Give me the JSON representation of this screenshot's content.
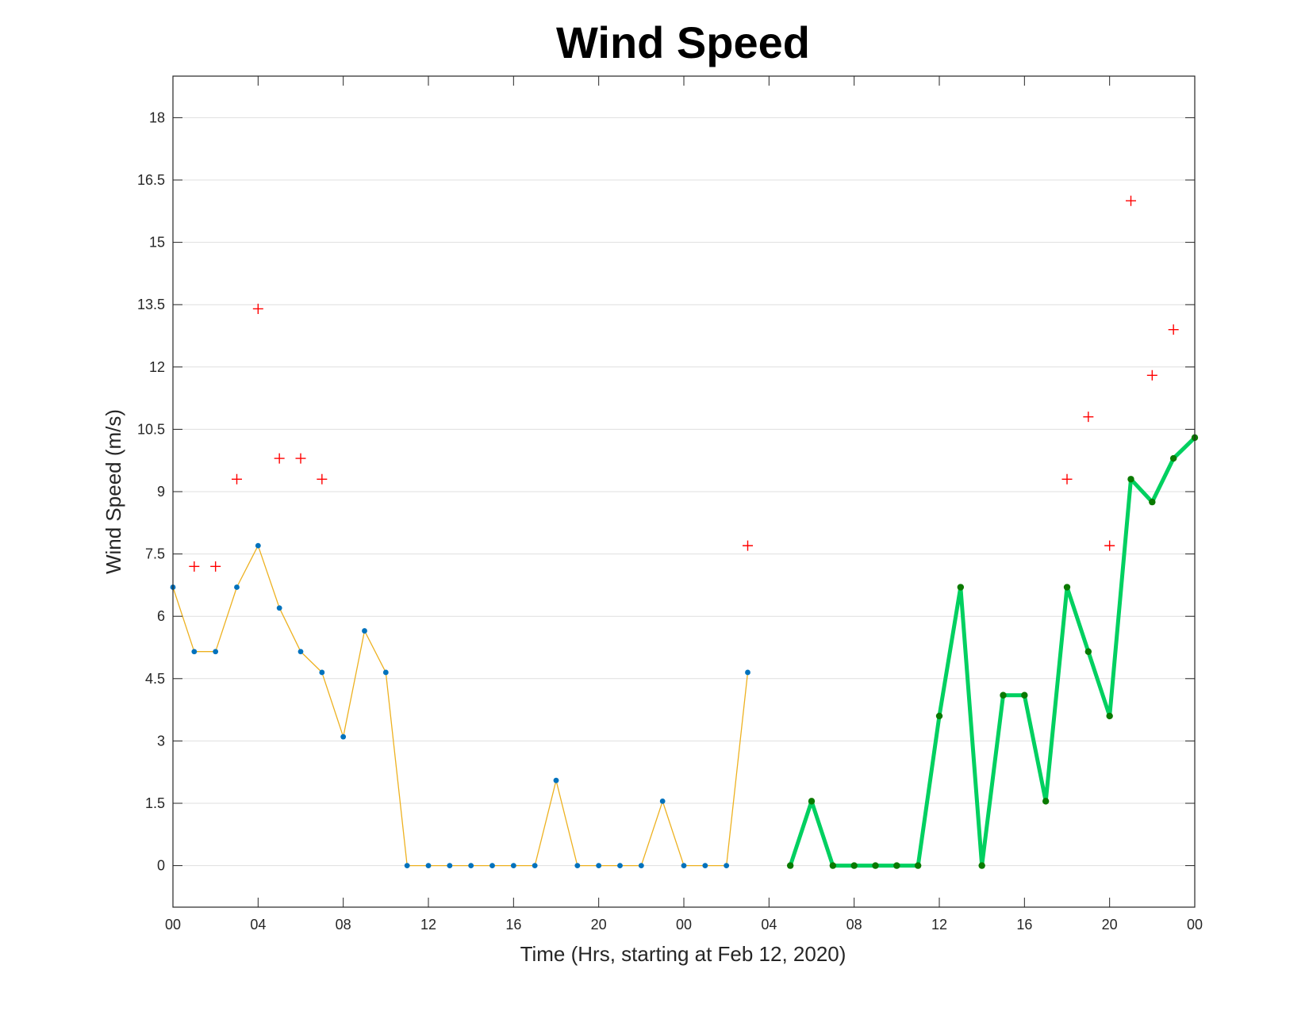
{
  "chart_data": {
    "type": "line",
    "title": "Wind Speed",
    "xlabel": "Time (Hrs, starting at Feb 12, 2020)",
    "ylabel": "Wind Speed (m/s)",
    "xlim": [
      0,
      48
    ],
    "ylim": [
      -1,
      19
    ],
    "x_tick_values": [
      0,
      4,
      8,
      12,
      16,
      20,
      24,
      28,
      32,
      36,
      40,
      44,
      48
    ],
    "x_tick_labels": [
      "00",
      "04",
      "08",
      "12",
      "16",
      "20",
      "00",
      "04",
      "08",
      "12",
      "16",
      "20",
      "00"
    ],
    "y_tick_values": [
      0,
      1.5,
      3,
      4.5,
      6,
      7.5,
      9,
      10.5,
      12,
      13.5,
      15,
      16.5,
      18
    ],
    "y_tick_labels": [
      "0",
      "1.5",
      "3",
      "4.5",
      "6",
      "7.5",
      "9",
      "10.5",
      "12",
      "13.5",
      "15",
      "16.5",
      "18"
    ],
    "grid": true,
    "series": [
      {
        "style": "thin-line-markers",
        "color": "#EDB120",
        "marker_color": "#0072BD",
        "x": [
          0,
          1,
          2,
          3,
          4,
          5,
          6,
          7,
          8,
          9,
          10,
          11,
          12,
          13,
          14,
          15,
          16,
          17,
          18,
          19,
          20,
          21,
          22,
          23,
          24,
          25,
          26,
          27
        ],
        "values": [
          6.7,
          5.15,
          5.15,
          6.7,
          7.7,
          6.2,
          5.15,
          4.65,
          3.1,
          5.65,
          4.65,
          0,
          0,
          0,
          0,
          0,
          0,
          0,
          2.05,
          0,
          0,
          0,
          0,
          1.55,
          0,
          0,
          0,
          4.65
        ]
      },
      {
        "style": "thick-line-markers",
        "color": "#00D060",
        "marker_color": "#0A7A00",
        "x": [
          29,
          30,
          31,
          32,
          33,
          34,
          35,
          36,
          37,
          38,
          39,
          40,
          41,
          42,
          43,
          44,
          45,
          46,
          47,
          48
        ],
        "values": [
          0,
          1.55,
          0,
          0,
          0,
          0,
          0,
          3.6,
          6.7,
          0,
          4.1,
          4.1,
          1.55,
          6.7,
          5.15,
          3.6,
          9.3,
          8.75,
          9.8,
          10.3
        ]
      },
      {
        "style": "plus-markers",
        "color": "#FF0000",
        "x": [
          1,
          2,
          3,
          4,
          5,
          6,
          7,
          27,
          42,
          43,
          44,
          45,
          46,
          47
        ],
        "values": [
          7.2,
          7.2,
          9.3,
          13.4,
          9.8,
          9.8,
          9.3,
          7.7,
          9.3,
          10.8,
          7.7,
          16,
          11.8,
          12.9
        ]
      }
    ]
  }
}
